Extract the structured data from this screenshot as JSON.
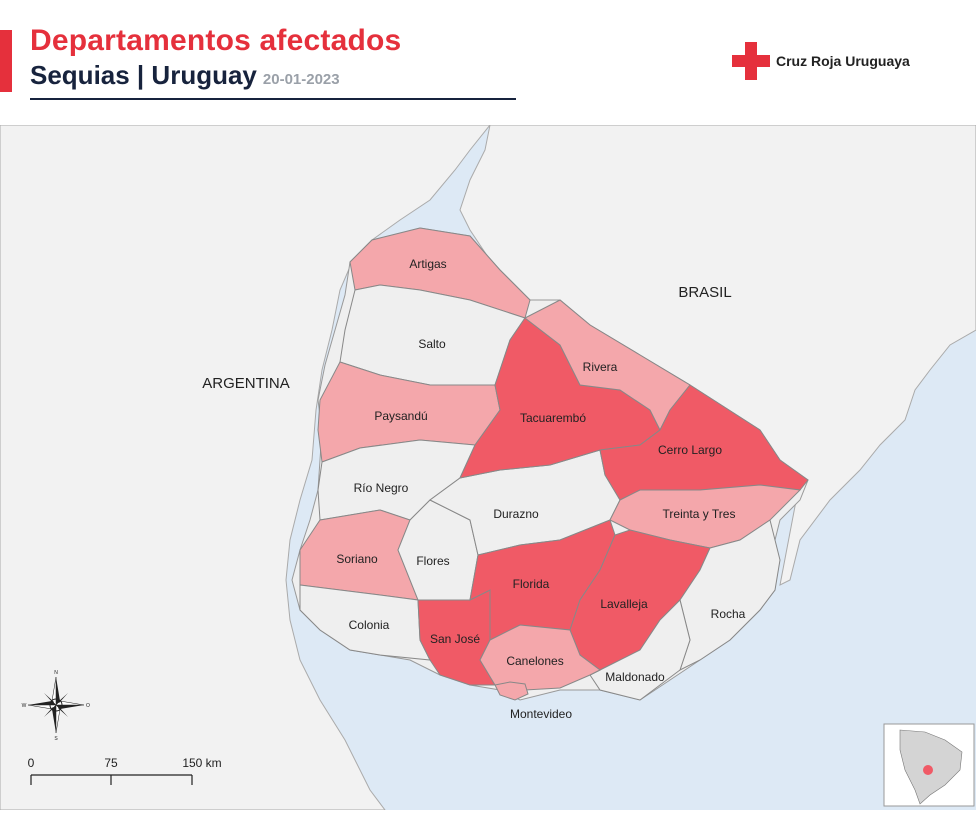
{
  "header": {
    "title": "Departamentos afectados",
    "subtitle": "Sequias | Uruguay",
    "date": "20-01-2023"
  },
  "logo": {
    "text": "Cruz Roja Uruguaya",
    "icon": "red-cross-icon",
    "color": "#e5303c"
  },
  "countries": {
    "argentina": "ARGENTINA",
    "brasil": "BRASIL"
  },
  "departments": {
    "artigas": "Artigas",
    "salto": "Salto",
    "paysandu": "Paysandú",
    "rio_negro": "Río Negro",
    "soriano": "Soriano",
    "colonia": "Colonia",
    "flores": "Flores",
    "san_jose": "San José",
    "florida": "Florida",
    "durazno": "Durazno",
    "tacuarembo": "Tacuarembó",
    "rivera": "Rivera",
    "cerro_largo": "Cerro Largo",
    "treinta_y_tres": "Treinta y Tres",
    "lavalleja": "Lavalleja",
    "rocha": "Rocha",
    "maldonado": "Maldonado",
    "canelones": "Canelones",
    "montevideo": "Montevideo"
  },
  "scale": {
    "tick0": "0",
    "tick1": "75",
    "tick2": "150 km"
  },
  "compass": {
    "n": "N",
    "s": "S",
    "e": "O",
    "w": "W"
  },
  "colors": {
    "high": "#f05a66",
    "medium": "#f4a7ab",
    "none": "#efefef",
    "land": "#f2f2f2",
    "water": "#dde9f5",
    "accent": "#e5303c",
    "navy": "#17233d"
  }
}
